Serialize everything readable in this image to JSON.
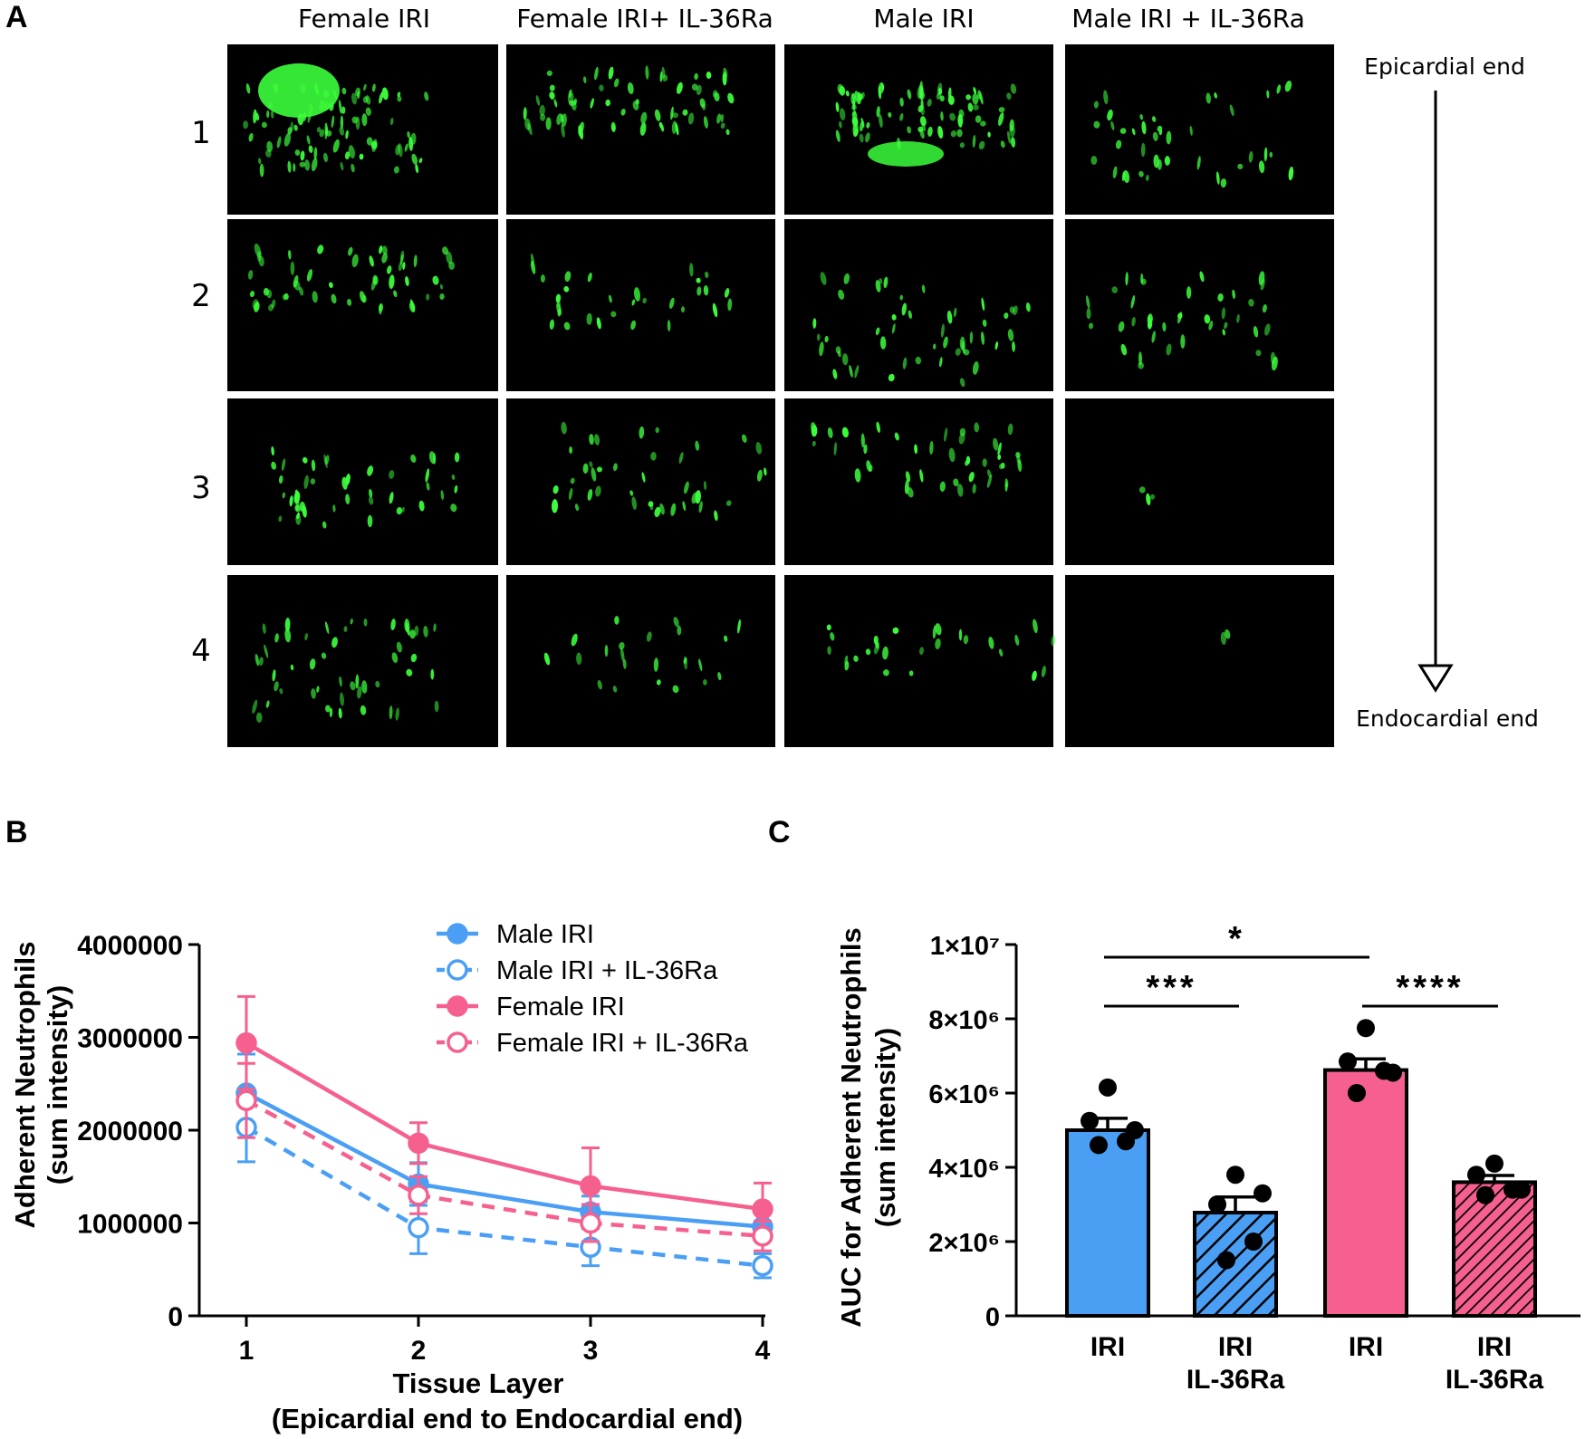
{
  "panel_a": {
    "label": "A",
    "columns": [
      "Female IRI",
      "Female IRI+ IL-36Ra",
      "Male IRI",
      "Male IRI + IL-36Ra"
    ],
    "rows": [
      "1",
      "2",
      "3",
      "4"
    ],
    "arrow_top_label": "Epicardial end",
    "arrow_bottom_label": "Endocardial end",
    "fluorescence_color": "#3cff3c",
    "image_background": "#000000",
    "signal_levels": [
      [
        1.0,
        0.75,
        0.95,
        0.45
      ],
      [
        0.6,
        0.35,
        0.55,
        0.45
      ],
      [
        0.5,
        0.45,
        0.5,
        0.03
      ],
      [
        0.55,
        0.25,
        0.3,
        0.02
      ]
    ]
  },
  "colors": {
    "male": "#4a9ff5",
    "female": "#f5608f",
    "axis": "#000000"
  },
  "chart_data": [
    {
      "panel": "B",
      "type": "line",
      "x": [
        1,
        2,
        3,
        4
      ],
      "xlabel": "Tissue Layer",
      "xlabel_2": "(Epicardial end to Endocardial end)",
      "ylabel": "Adherent Neutrophils",
      "ylabel_2": "(sum intensity)",
      "ylim": [
        0,
        4000000
      ],
      "xlim": [
        0.6,
        4.05
      ],
      "yticks": [
        "0",
        "1000000",
        "2000000",
        "3000000",
        "4000000"
      ],
      "xticks": [
        "1",
        "2",
        "3",
        "4"
      ],
      "legend_position": "top-right",
      "series": [
        {
          "name": "Male IRI",
          "values": [
            2400000,
            1420000,
            1120000,
            960000
          ],
          "errors": [
            420000,
            230000,
            170000,
            150000
          ],
          "color": "#4a9ff5",
          "filled": true,
          "dashed": false
        },
        {
          "name": "Male IRI + IL-36Ra",
          "values": [
            2030000,
            950000,
            740000,
            540000
          ],
          "errors": [
            370000,
            280000,
            200000,
            130000
          ],
          "color": "#4a9ff5",
          "filled": false,
          "dashed": true
        },
        {
          "name": "Female IRI",
          "values": [
            2940000,
            1860000,
            1400000,
            1150000
          ],
          "errors": [
            500000,
            220000,
            410000,
            280000
          ],
          "color": "#f5608f",
          "filled": true,
          "dashed": false
        },
        {
          "name": "Female IRI + IL-36Ra",
          "values": [
            2320000,
            1300000,
            1000000,
            860000
          ],
          "errors": [
            400000,
            200000,
            200000,
            160000
          ],
          "color": "#f5608f",
          "filled": false,
          "dashed": true
        }
      ]
    },
    {
      "panel": "C",
      "type": "bar",
      "categories": [
        "IRI",
        "IRI\nIL-36Ra",
        "IRI",
        "IRI\nIL-36Ra"
      ],
      "category_lines": [
        [
          "IRI"
        ],
        [
          "IRI",
          "IL-36Ra"
        ],
        [
          "IRI"
        ],
        [
          "IRI",
          "IL-36Ra"
        ]
      ],
      "values": [
        5000000,
        2780000,
        6620000,
        3600000
      ],
      "errors": [
        320000,
        420000,
        300000,
        180000
      ],
      "points": [
        [
          6150000,
          5250000,
          4700000,
          4600000,
          5000000
        ],
        [
          3800000,
          3000000,
          2000000,
          1500000,
          3300000
        ],
        [
          7750000,
          6850000,
          6600000,
          6000000,
          6550000
        ],
        [
          4100000,
          3800000,
          3400000,
          3250000,
          3400000
        ]
      ],
      "bar_colors": [
        "#4a9ff5",
        "#4a9ff5",
        "#f5608f",
        "#f5608f"
      ],
      "hatched": [
        false,
        true,
        false,
        true
      ],
      "ylabel": "AUC for Adherent Neutrophils",
      "ylabel_2": "(sum intensity)",
      "ylim": [
        0,
        10000000
      ],
      "yticks": [
        "0",
        "2×10⁶",
        "4×10⁶",
        "6×10⁶",
        "8×10⁶",
        "1×10⁷"
      ],
      "significance": [
        {
          "from": 0,
          "to": 2,
          "label": "*"
        },
        {
          "from": 0,
          "to": 1,
          "label": "***"
        },
        {
          "from": 2,
          "to": 3,
          "label": "****"
        }
      ]
    }
  ]
}
